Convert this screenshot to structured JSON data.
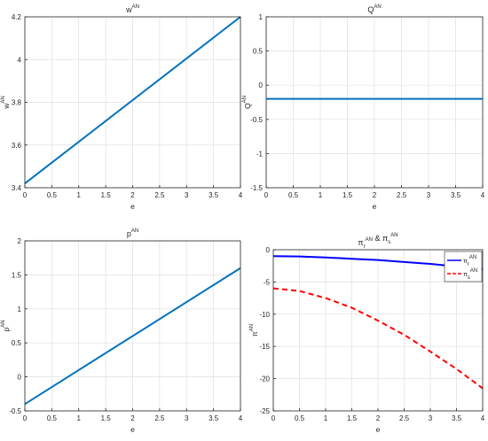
{
  "figure": {
    "colors": {
      "line_blue_dark": "#0072BD",
      "line_blue": "#0000FF",
      "line_red": "#FF0000",
      "grid": "#E0E0E0",
      "axes": "#262626"
    }
  },
  "chart_data": [
    {
      "type": "line",
      "title": {
        "base": "w",
        "sup": "AN"
      },
      "xlabel": "e",
      "ylabel": {
        "base": "w",
        "sup": "AN"
      },
      "xlim": [
        0,
        4
      ],
      "ylim": [
        3.4,
        4.2
      ],
      "xticks": [
        0,
        0.5,
        1,
        1.5,
        2,
        2.5,
        3,
        3.5,
        4
      ],
      "xtick_labels": [
        "0",
        "0.5",
        "1",
        "1.5",
        "2",
        "2.5",
        "3",
        "3.5",
        "4"
      ],
      "yticks": [
        3.4,
        3.6,
        3.8,
        4,
        4.2
      ],
      "ytick_labels": [
        "3.4",
        "3.6",
        "3.8",
        "4",
        "4.2"
      ],
      "grid": true,
      "series": [
        {
          "color": "#0072BD",
          "style": "solid",
          "x": [
            0,
            4
          ],
          "y": [
            3.42,
            4.2
          ]
        }
      ]
    },
    {
      "type": "line",
      "title": {
        "base": "Q",
        "sup": "AN"
      },
      "xlabel": "e",
      "ylabel": {
        "base": "Q",
        "sup": "AN"
      },
      "xlim": [
        0,
        4
      ],
      "ylim": [
        -1.5,
        1
      ],
      "xticks": [
        0,
        0.5,
        1,
        1.5,
        2,
        2.5,
        3,
        3.5,
        4
      ],
      "xtick_labels": [
        "0",
        "0.5",
        "1",
        "1.5",
        "2",
        "2.5",
        "3",
        "3.5",
        "4"
      ],
      "yticks": [
        -1.5,
        -1,
        -0.5,
        0,
        0.5,
        1
      ],
      "ytick_labels": [
        "-1.5",
        "-1",
        "-0.5",
        "0",
        "0.5",
        "1"
      ],
      "grid": true,
      "series": [
        {
          "color": "#0072BD",
          "style": "solid",
          "x": [
            0,
            4
          ],
          "y": [
            -0.2,
            -0.2
          ]
        }
      ]
    },
    {
      "type": "line",
      "title": {
        "base": "p",
        "sup": "AN"
      },
      "xlabel": "e",
      "ylabel": {
        "base": "p",
        "sup": "AN"
      },
      "xlim": [
        0,
        4
      ],
      "ylim": [
        -0.5,
        2
      ],
      "xticks": [
        0,
        0.5,
        1,
        1.5,
        2,
        2.5,
        3,
        3.5,
        4
      ],
      "xtick_labels": [
        "0",
        "0.5",
        "1",
        "1.5",
        "2",
        "2.5",
        "3",
        "3.5",
        "4"
      ],
      "yticks": [
        -0.5,
        0,
        0.5,
        1,
        1.5,
        2
      ],
      "ytick_labels": [
        "-0.5",
        "0",
        "0.5",
        "1",
        "1.5",
        "2"
      ],
      "grid": true,
      "series": [
        {
          "color": "#0072BD",
          "style": "solid",
          "x": [
            0,
            4
          ],
          "y": [
            -0.4,
            1.6
          ]
        }
      ]
    },
    {
      "type": "line",
      "title": {
        "parts": [
          {
            "base": "π",
            "sub": "r",
            "sup": "AN"
          },
          {
            "text": " & "
          },
          {
            "base": "π",
            "sub": "s",
            "sup": "AN"
          }
        ]
      },
      "xlabel": "e",
      "ylabel": {
        "base": "π",
        "sup": "AN"
      },
      "xlim": [
        0,
        4
      ],
      "ylim": [
        -25,
        0
      ],
      "xticks": [
        0,
        0.5,
        1,
        1.5,
        2,
        2.5,
        3,
        3.5,
        4
      ],
      "xtick_labels": [
        "0",
        "0.5",
        "1",
        "1.5",
        "2",
        "2.5",
        "3",
        "3.5",
        "4"
      ],
      "yticks": [
        -25,
        -20,
        -15,
        -10,
        -5,
        0
      ],
      "ytick_labels": [
        "-25",
        "-20",
        "-15",
        "-10",
        "-5",
        "0"
      ],
      "grid": true,
      "legend_position": "top-right",
      "series": [
        {
          "label": {
            "base": "π",
            "sub": "r",
            "sup": "AN"
          },
          "color": "#0000FF",
          "style": "solid",
          "x": [
            0,
            0.5,
            1,
            1.5,
            2,
            2.5,
            3,
            3.5,
            4
          ],
          "y": [
            -1.0,
            -1.05,
            -1.2,
            -1.4,
            -1.6,
            -1.9,
            -2.2,
            -2.6,
            -3.0
          ]
        },
        {
          "label": {
            "base": "π",
            "sub": "s",
            "sup": "AN"
          },
          "color": "#FF0000",
          "style": "dashed",
          "x": [
            0,
            0.5,
            1,
            1.5,
            2,
            2.5,
            3,
            3.5,
            4
          ],
          "y": [
            -6.0,
            -6.4,
            -7.5,
            -9.0,
            -11.0,
            -13.2,
            -15.8,
            -18.5,
            -21.5
          ]
        }
      ]
    }
  ]
}
